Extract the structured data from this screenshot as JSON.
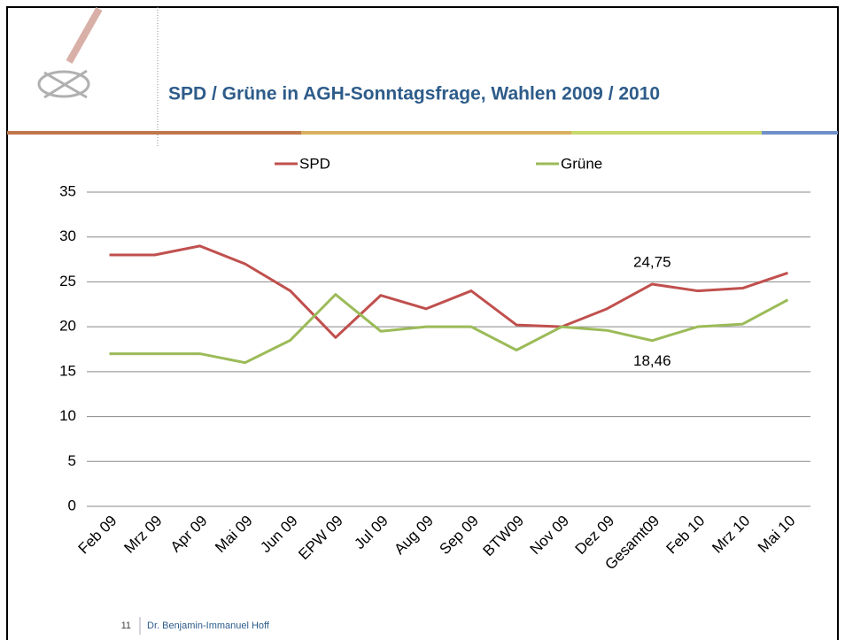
{
  "slide": {
    "page_number": "11",
    "author": "Dr. Benjamin-Immanuel Hoff"
  },
  "chart_data": {
    "type": "line",
    "title": "SPD / Grüne in AGH-Sonntagsfrage, Wahlen 2009 / 2010",
    "categories": [
      "Feb 09",
      "Mrz 09",
      "Apr 09",
      "Mai 09",
      "Jun 09",
      "EPW 09",
      "Jul 09",
      "Aug 09",
      "Sep 09",
      "BTW09",
      "Nov 09",
      "Dez 09",
      "Gesamt09",
      "Feb 10",
      "Mrz 10",
      "Mai 10"
    ],
    "series": [
      {
        "name": "SPD",
        "color": "#c0504d",
        "values": [
          28,
          28,
          29,
          27,
          24,
          18.8,
          23.5,
          22,
          24,
          20.2,
          20,
          22,
          24.75,
          24,
          24.3,
          26
        ],
        "value_labels": [
          null,
          null,
          null,
          null,
          null,
          null,
          null,
          null,
          null,
          null,
          null,
          null,
          "24,75",
          null,
          null,
          null
        ]
      },
      {
        "name": "Grüne",
        "color": "#9bbb59",
        "values": [
          17,
          17,
          17,
          16,
          18.5,
          23.6,
          19.5,
          20,
          20,
          17.4,
          20,
          19.6,
          18.46,
          20,
          20.3,
          23
        ],
        "value_labels": [
          null,
          null,
          null,
          null,
          null,
          null,
          null,
          null,
          null,
          null,
          null,
          null,
          "18,46",
          null,
          null,
          null
        ]
      }
    ],
    "ylim": [
      0,
      35
    ],
    "yticks": [
      0,
      5,
      10,
      15,
      20,
      25,
      30,
      35
    ],
    "grid": true,
    "legend": "top"
  }
}
